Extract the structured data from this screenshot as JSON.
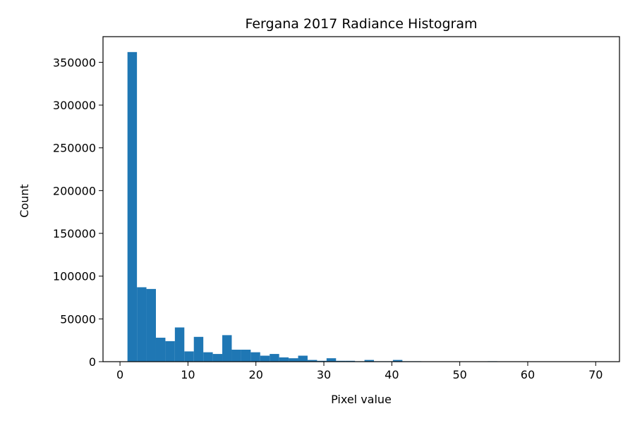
{
  "chart_data": {
    "type": "bar",
    "title": "Fergana 2017 Radiance Histogram",
    "xlabel": "Pixel value",
    "ylabel": "Count",
    "xlim": [
      -2.5,
      73.5
    ],
    "ylim": [
      0,
      380000
    ],
    "xticks": [
      "0",
      "10",
      "20",
      "30",
      "40",
      "50",
      "60",
      "70"
    ],
    "yticks": [
      "0",
      "50000",
      "100000",
      "150000",
      "200000",
      "250000",
      "300000",
      "350000"
    ],
    "bar_color": "#1f77b4",
    "grid": false,
    "bins": {
      "start": 1.1,
      "width": 1.395,
      "counts": [
        362000,
        87000,
        85000,
        28000,
        24000,
        40000,
        12000,
        29000,
        11000,
        9000,
        31000,
        14000,
        14000,
        11000,
        7000,
        9000,
        5000,
        4000,
        7000,
        2000,
        1000,
        4000,
        1000,
        1000,
        500,
        2000,
        500,
        500,
        2000,
        500,
        500,
        300,
        300,
        300,
        200,
        200,
        200,
        200,
        500,
        200,
        100,
        100,
        100,
        100,
        100,
        100,
        100,
        100,
        100,
        100
      ]
    }
  }
}
